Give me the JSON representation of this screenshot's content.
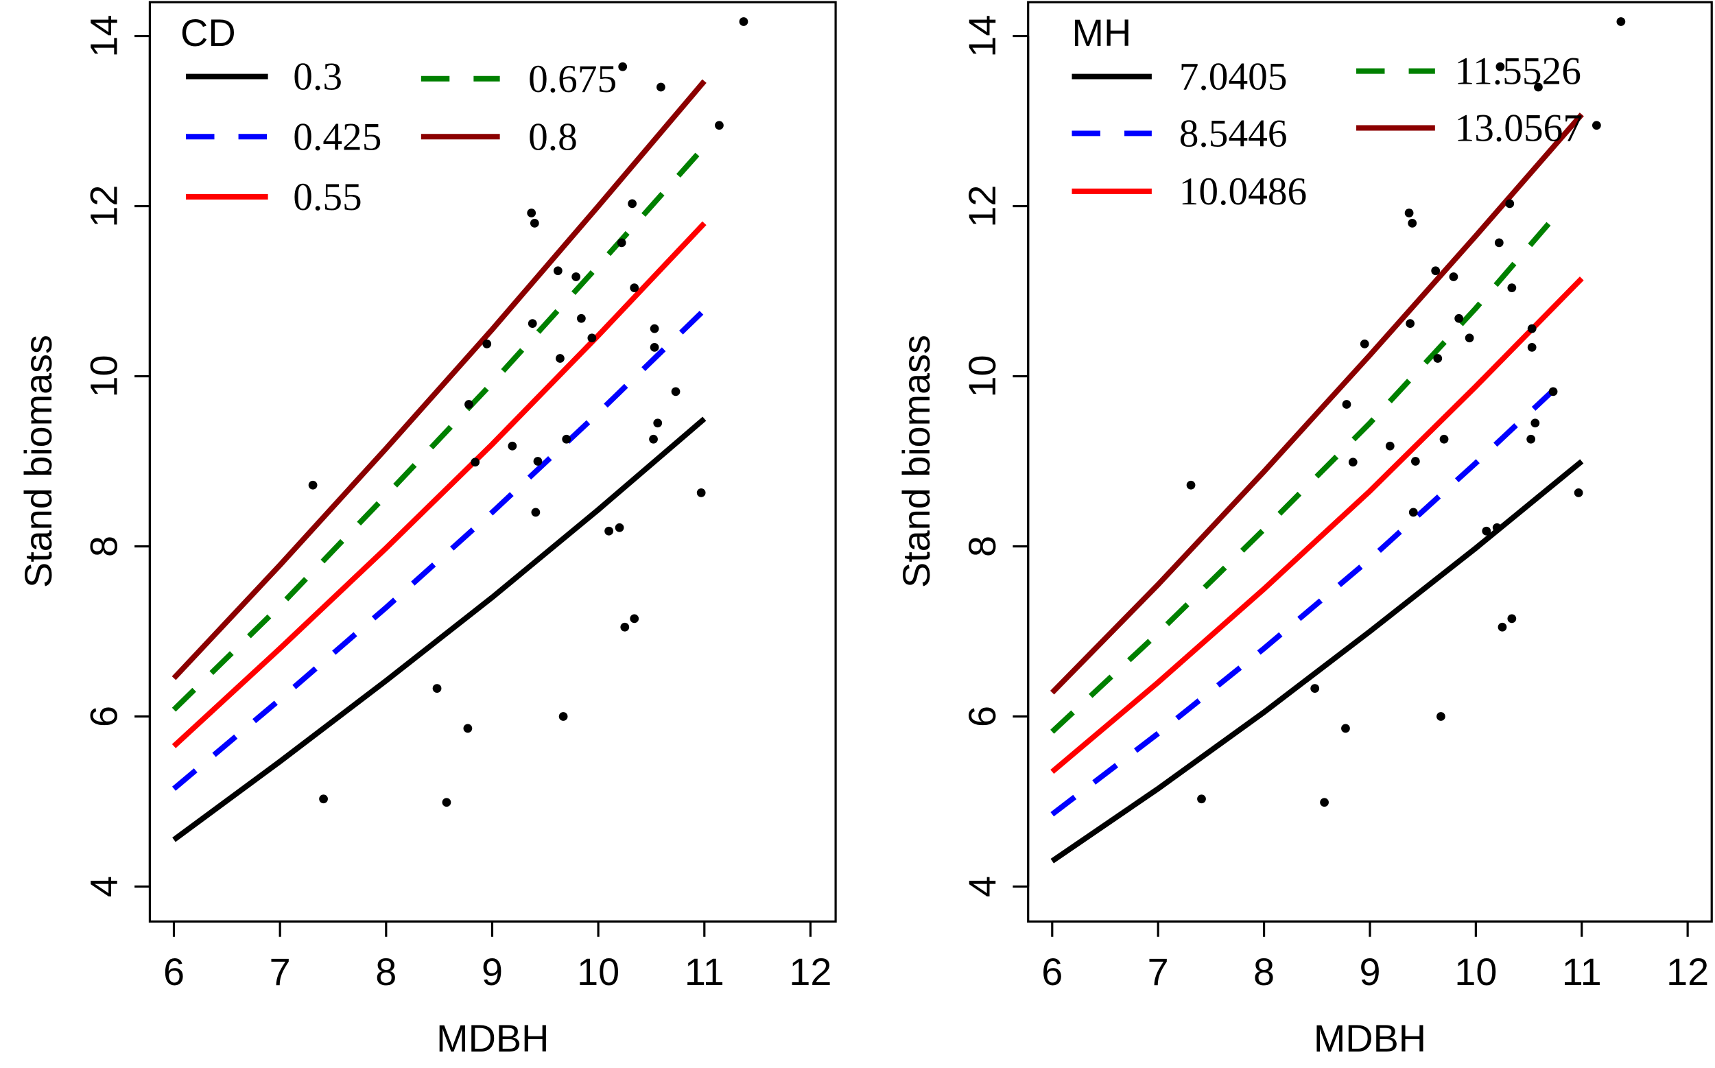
{
  "chart_data": [
    {
      "type": "line",
      "title": "",
      "xlabel": "MDBH",
      "ylabel": "Stand biomass",
      "xlim": [
        6,
        12
      ],
      "ylim": [
        4,
        14
      ],
      "xticks": [
        "6",
        "7",
        "8",
        "9",
        "10",
        "11",
        "12"
      ],
      "yticks": [
        "4",
        "6",
        "8",
        "10",
        "12",
        "14"
      ],
      "legend": {
        "title": "CD",
        "placement": "top-left"
      },
      "series": [
        {
          "name": "0.3",
          "color": "#000000",
          "dash": false,
          "x": [
            6,
            7,
            8,
            9,
            10,
            11
          ],
          "values": [
            4.55,
            5.47,
            6.42,
            7.4,
            8.43,
            9.5
          ]
        },
        {
          "name": "0.425",
          "color": "#0000ff",
          "dash": true,
          "x": [
            6,
            7,
            8,
            9,
            10,
            11
          ],
          "values": [
            5.15,
            6.2,
            7.28,
            8.4,
            9.57,
            10.78
          ]
        },
        {
          "name": "0.55",
          "color": "#ff0000",
          "dash": false,
          "x": [
            6,
            7,
            8,
            9,
            10,
            11
          ],
          "values": [
            5.65,
            6.8,
            7.98,
            9.2,
            10.48,
            11.8
          ]
        },
        {
          "name": "0.675",
          "color": "#008000",
          "dash": true,
          "x": [
            6,
            7,
            8,
            9,
            10,
            11
          ],
          "values": [
            6.08,
            7.3,
            8.6,
            9.92,
            11.3,
            12.7
          ]
        },
        {
          "name": "0.8",
          "color": "#8b0000",
          "dash": false,
          "x": [
            6,
            7,
            8,
            9,
            10,
            11
          ],
          "values": [
            6.45,
            7.78,
            9.15,
            10.55,
            12.0,
            13.47
          ]
        }
      ],
      "points": [
        [
          11.37,
          14.17
        ],
        [
          10.23,
          13.64
        ],
        [
          10.59,
          13.4
        ],
        [
          11.14,
          12.95
        ],
        [
          9.37,
          11.92
        ],
        [
          9.4,
          11.8
        ],
        [
          10.32,
          12.03
        ],
        [
          10.22,
          11.57
        ],
        [
          9.62,
          11.24
        ],
        [
          9.79,
          11.17
        ],
        [
          10.34,
          11.04
        ],
        [
          9.84,
          10.68
        ],
        [
          9.38,
          10.62
        ],
        [
          9.94,
          10.45
        ],
        [
          10.53,
          10.56
        ],
        [
          10.53,
          10.34
        ],
        [
          9.64,
          10.21
        ],
        [
          8.95,
          10.38
        ],
        [
          10.73,
          9.82
        ],
        [
          8.78,
          9.67
        ],
        [
          10.56,
          9.45
        ],
        [
          10.52,
          9.26
        ],
        [
          9.19,
          9.18
        ],
        [
          9.7,
          9.26
        ],
        [
          9.43,
          9.0
        ],
        [
          8.84,
          8.99
        ],
        [
          9.41,
          8.4
        ],
        [
          7.31,
          8.72
        ],
        [
          10.97,
          8.63
        ],
        [
          10.1,
          8.18
        ],
        [
          10.2,
          8.22
        ],
        [
          10.34,
          7.15
        ],
        [
          10.25,
          7.05
        ],
        [
          8.48,
          6.33
        ],
        [
          8.77,
          5.86
        ],
        [
          9.67,
          6.0
        ],
        [
          7.41,
          5.03
        ],
        [
          8.57,
          4.99
        ]
      ]
    },
    {
      "type": "line",
      "title": "",
      "xlabel": "MDBH",
      "ylabel": "Stand biomass",
      "xlim": [
        6,
        12
      ],
      "ylim": [
        4,
        14
      ],
      "xticks": [
        "6",
        "7",
        "8",
        "9",
        "10",
        "11",
        "12"
      ],
      "yticks": [
        "4",
        "6",
        "8",
        "10",
        "12",
        "14"
      ],
      "legend": {
        "title": "MH",
        "placement": "top-left"
      },
      "series": [
        {
          "name": "7.0405",
          "color": "#000000",
          "dash": false,
          "x": [
            6,
            7,
            8,
            9,
            10,
            11
          ],
          "values": [
            4.3,
            5.15,
            6.05,
            7.0,
            7.98,
            9.0
          ]
        },
        {
          "name": "8.5446",
          "color": "#0000ff",
          "dash": true,
          "x": [
            6,
            7,
            8,
            9,
            10,
            10.83
          ],
          "values": [
            4.85,
            5.8,
            6.8,
            7.85,
            8.98,
            9.95
          ]
        },
        {
          "name": "10.0486",
          "color": "#ff0000",
          "dash": false,
          "x": [
            6,
            7,
            8,
            9,
            10,
            11
          ],
          "values": [
            5.35,
            6.4,
            7.5,
            8.65,
            9.88,
            11.15
          ]
        },
        {
          "name": "11.5526",
          "color": "#008000",
          "dash": true,
          "x": [
            6,
            7,
            8,
            9,
            10,
            10.83
          ],
          "values": [
            5.82,
            6.98,
            8.2,
            9.45,
            10.8,
            12.0
          ]
        },
        {
          "name": "13.0567",
          "color": "#8b0000",
          "dash": false,
          "x": [
            6,
            7,
            8,
            9,
            10,
            11
          ],
          "values": [
            6.28,
            7.55,
            8.88,
            10.25,
            11.65,
            13.08
          ]
        }
      ],
      "points": [
        [
          11.37,
          14.17
        ],
        [
          10.23,
          13.64
        ],
        [
          10.59,
          13.4
        ],
        [
          11.14,
          12.95
        ],
        [
          9.37,
          11.92
        ],
        [
          9.4,
          11.8
        ],
        [
          10.32,
          12.03
        ],
        [
          10.22,
          11.57
        ],
        [
          9.62,
          11.24
        ],
        [
          9.79,
          11.17
        ],
        [
          10.34,
          11.04
        ],
        [
          9.84,
          10.68
        ],
        [
          9.38,
          10.62
        ],
        [
          9.94,
          10.45
        ],
        [
          10.53,
          10.56
        ],
        [
          10.53,
          10.34
        ],
        [
          9.64,
          10.21
        ],
        [
          8.95,
          10.38
        ],
        [
          10.73,
          9.82
        ],
        [
          8.78,
          9.67
        ],
        [
          10.56,
          9.45
        ],
        [
          10.52,
          9.26
        ],
        [
          9.19,
          9.18
        ],
        [
          9.7,
          9.26
        ],
        [
          9.43,
          9.0
        ],
        [
          8.84,
          8.99
        ],
        [
          9.41,
          8.4
        ],
        [
          7.31,
          8.72
        ],
        [
          10.97,
          8.63
        ],
        [
          10.1,
          8.18
        ],
        [
          10.2,
          8.22
        ],
        [
          10.34,
          7.15
        ],
        [
          10.25,
          7.05
        ],
        [
          8.48,
          6.33
        ],
        [
          8.77,
          5.86
        ],
        [
          9.67,
          6.0
        ],
        [
          7.41,
          5.03
        ],
        [
          8.57,
          4.99
        ]
      ]
    }
  ]
}
